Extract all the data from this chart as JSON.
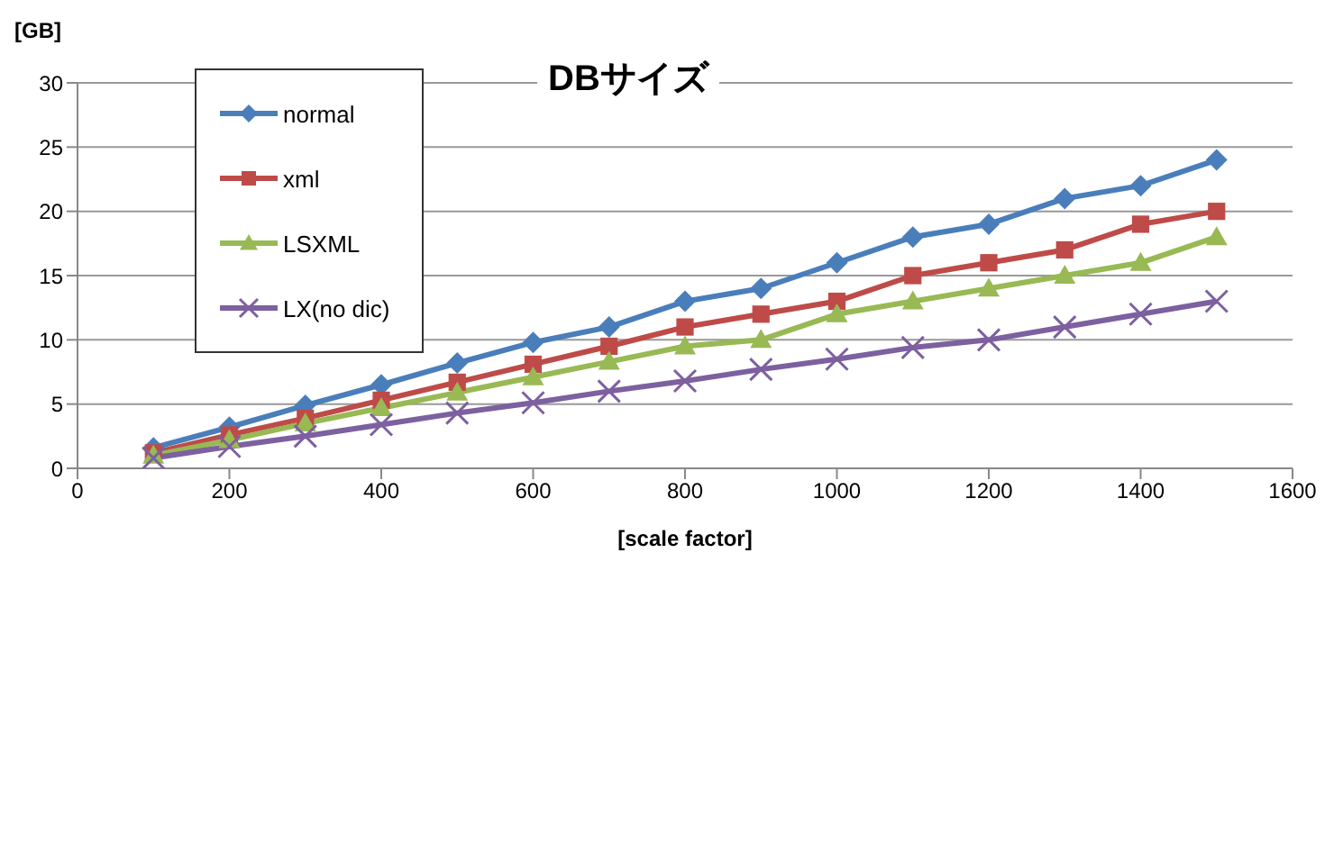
{
  "chart_data": {
    "type": "line",
    "title": "DBサイズ",
    "xlabel": "[scale factor]",
    "ylabel": "[GB]",
    "x": [
      100,
      200,
      300,
      400,
      500,
      600,
      700,
      800,
      900,
      1000,
      1100,
      1200,
      1300,
      1400,
      1500
    ],
    "series": [
      {
        "name": "normal",
        "color": "#4a7ebb",
        "marker": "diamond",
        "values": [
          1.6,
          3.2,
          4.9,
          6.5,
          8.2,
          9.8,
          11,
          13,
          14,
          16,
          18,
          19,
          21,
          22,
          24
        ]
      },
      {
        "name": "xml",
        "color": "#be4b48",
        "marker": "square",
        "values": [
          1.2,
          2.6,
          3.9,
          5.3,
          6.7,
          8.1,
          9.5,
          11,
          12,
          13,
          15,
          16,
          17,
          19,
          20
        ]
      },
      {
        "name": "LSXML",
        "color": "#98b954",
        "marker": "triangle",
        "values": [
          1.0,
          2.2,
          3.5,
          4.7,
          5.9,
          7.1,
          8.3,
          9.5,
          10,
          12,
          13,
          14,
          15,
          16,
          18
        ]
      },
      {
        "name": "LX(no dic)",
        "color": "#7d60a0",
        "marker": "cross",
        "values": [
          0.8,
          1.7,
          2.5,
          3.4,
          4.3,
          5.1,
          6,
          6.8,
          7.7,
          8.5,
          9.4,
          10,
          11,
          12,
          13
        ]
      }
    ],
    "xlim": [
      0,
      1600
    ],
    "xticks": [
      0,
      200,
      400,
      600,
      800,
      1000,
      1200,
      1400,
      1600
    ],
    "ylim": [
      0,
      30
    ],
    "yticks": [
      0,
      5,
      10,
      15,
      20,
      25,
      30
    ],
    "grid": "y",
    "legend": "top left"
  }
}
